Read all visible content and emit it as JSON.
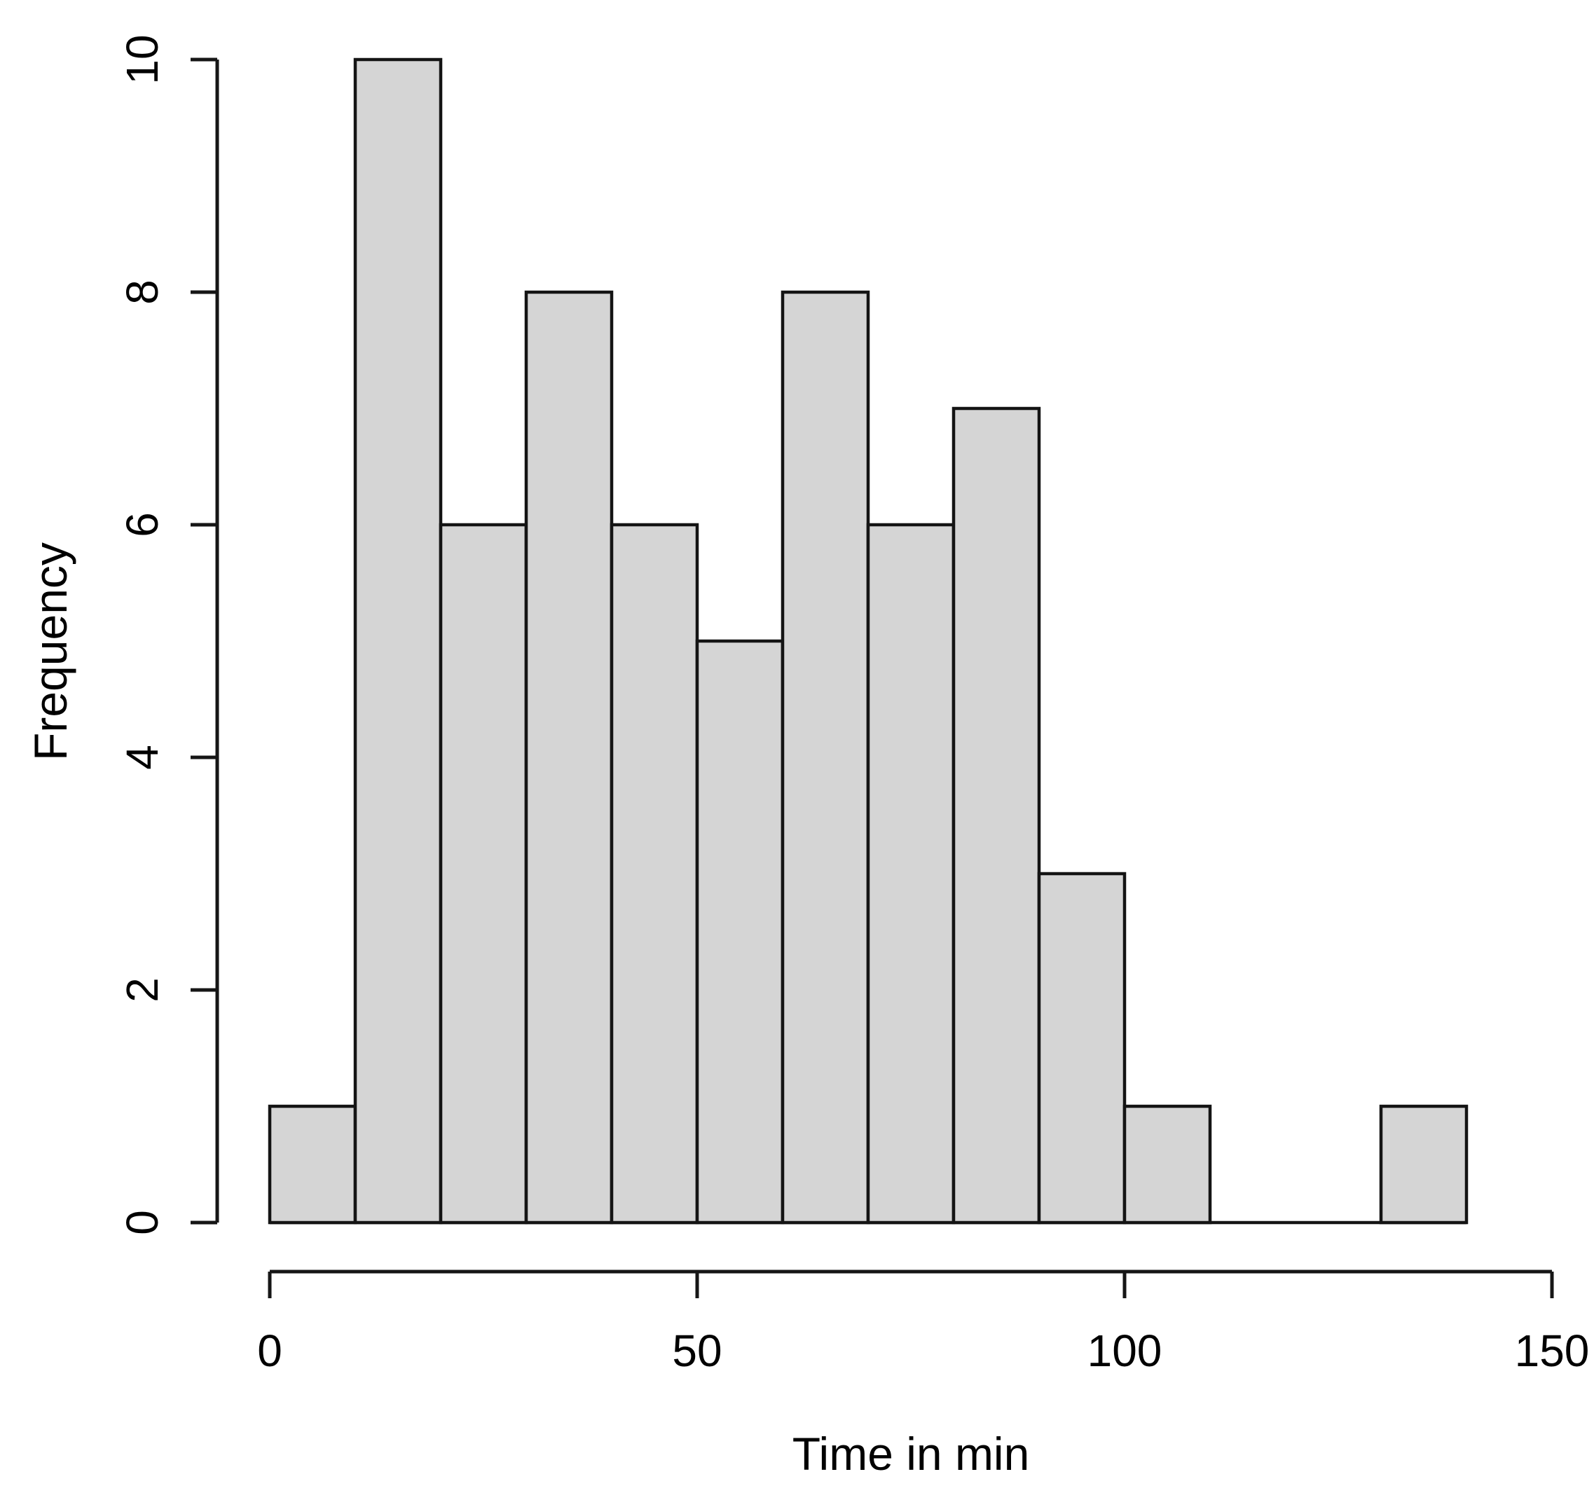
{
  "page": {
    "background": "#ffffff"
  },
  "chart_data": {
    "type": "bar",
    "subtype": "histogram",
    "title": "",
    "xlabel": "Time in min",
    "ylabel": "Frequency",
    "bin_width": 10,
    "bin_edges": [
      0,
      10,
      20,
      30,
      40,
      50,
      60,
      70,
      80,
      90,
      100,
      110,
      120,
      130,
      140
    ],
    "counts": [
      1,
      10,
      6,
      8,
      6,
      5,
      8,
      6,
      7,
      3,
      1,
      0,
      0,
      1
    ],
    "x_ticks": [
      "0",
      "50",
      "100",
      "150"
    ],
    "x_tick_values": [
      0,
      50,
      100,
      150
    ],
    "y_ticks": [
      "0",
      "2",
      "4",
      "6",
      "8",
      "10"
    ],
    "y_tick_values": [
      0,
      2,
      4,
      6,
      8,
      10
    ],
    "xlim": [
      0,
      150
    ],
    "ylim": [
      0,
      10
    ],
    "grid": false,
    "legend": false,
    "y_tick_labels_rotated": true,
    "colors": {
      "bar_fill": "#d5d5d5",
      "bar_stroke": "#141414",
      "axis": "#161616",
      "text": "#000000",
      "background": "#ffffff"
    }
  }
}
